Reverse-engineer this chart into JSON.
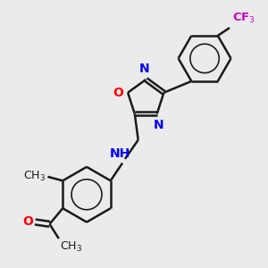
{
  "background_color": "#ebebeb",
  "bond_color": "#1a1a1a",
  "N_color": "#0000ff",
  "O_color": "#ff0000",
  "F_color": "#cc00cc",
  "C_color": "#1a1a1a",
  "bond_width": 1.8,
  "font_size": 10,
  "fig_size": [
    3.0,
    3.0
  ],
  "dpi": 100,
  "xlim": [
    0,
    10
  ],
  "ylim": [
    0,
    10
  ]
}
